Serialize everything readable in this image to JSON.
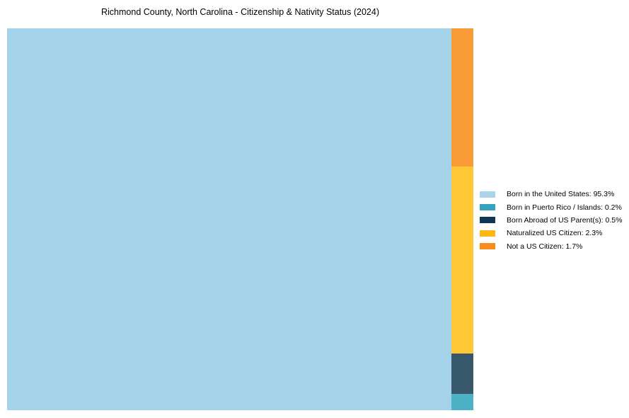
{
  "chart_data": {
    "type": "treemap",
    "title": "Richmond County, North Carolina - Citizenship & Nativity Status (2024)",
    "unit": "%",
    "total": 100.0,
    "categories": [
      {
        "label": "Born in the United States",
        "value": 95.3,
        "swatch_color": "#A8D3EA",
        "tile_color": "#A4D3E9"
      },
      {
        "label": "Born in Puerto Rico / Islands",
        "value": 0.2,
        "swatch_color": "#35A3BF",
        "tile_color": "#4DB1C5"
      },
      {
        "label": "Born Abroad of US Parent(s)",
        "value": 0.5,
        "swatch_color": "#0D3A52",
        "tile_color": "#38596C"
      },
      {
        "label": "Naturalized US Citizen",
        "value": 2.3,
        "swatch_color": "#FEB612",
        "tile_color": "#FEC835"
      },
      {
        "label": "Not a US Citizen",
        "value": 1.7,
        "swatch_color": "#F68B1E",
        "tile_color": "#F99C37"
      }
    ],
    "legend": {
      "position": "right-middle",
      "entries": [
        "Born in the United States: 95.3%",
        "Born in Puerto Rico / Islands: 0.2%",
        "Born Abroad of US Parent(s): 0.5%",
        "Naturalized US Citizen: 2.3%",
        "Not a US Citizen: 1.7%"
      ]
    },
    "layout": {
      "main_tile_index": 0,
      "right_column_top_to_bottom": [
        4,
        3,
        2,
        1
      ],
      "plot_background": "#FFFFFF",
      "grid": false
    }
  }
}
